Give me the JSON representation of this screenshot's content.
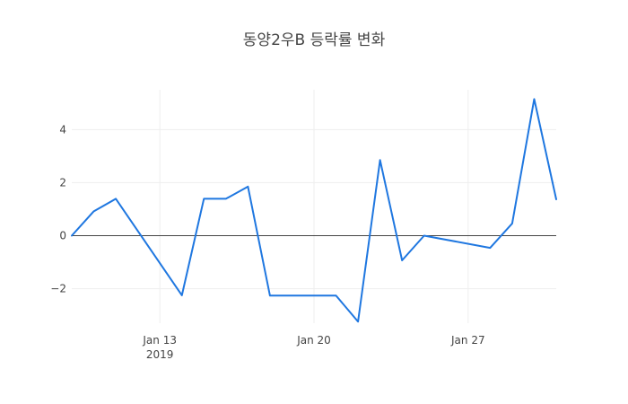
{
  "chart_data": {
    "type": "line",
    "title": "동양2우B 등락률 변화",
    "xlabel": "",
    "ylabel": "",
    "x": [
      "2019-01-09",
      "2019-01-10",
      "2019-01-11",
      "2019-01-14",
      "2019-01-15",
      "2019-01-16",
      "2019-01-17",
      "2019-01-18",
      "2019-01-21",
      "2019-01-22",
      "2019-01-23",
      "2019-01-24",
      "2019-01-25",
      "2019-01-28",
      "2019-01-29",
      "2019-01-30",
      "2019-01-31"
    ],
    "series": [
      {
        "name": "",
        "color": "#1f77e0",
        "values": [
          0.0,
          0.92,
          1.39,
          -2.25,
          1.39,
          1.39,
          1.85,
          -2.26,
          -2.26,
          -3.24,
          2.85,
          -0.93,
          0.0,
          -0.46,
          0.46,
          5.15,
          1.37
        ]
      }
    ],
    "xlim": [
      "2019-01-09",
      "2019-01-31"
    ],
    "ylim": [
      -3.3,
      5.5
    ],
    "x_ticks": [
      {
        "value": "2019-01-13",
        "label": "Jan 13",
        "sublabel": "2019"
      },
      {
        "value": "2019-01-20",
        "label": "Jan 20",
        "sublabel": ""
      },
      {
        "value": "2019-01-27",
        "label": "Jan 27",
        "sublabel": ""
      }
    ],
    "y_ticks": [
      {
        "value": -2,
        "label": "−2"
      },
      {
        "value": 0,
        "label": "0"
      },
      {
        "value": 2,
        "label": "2"
      },
      {
        "value": 4,
        "label": "4"
      }
    ],
    "grid": true,
    "zero_line": true,
    "legend": "none"
  }
}
